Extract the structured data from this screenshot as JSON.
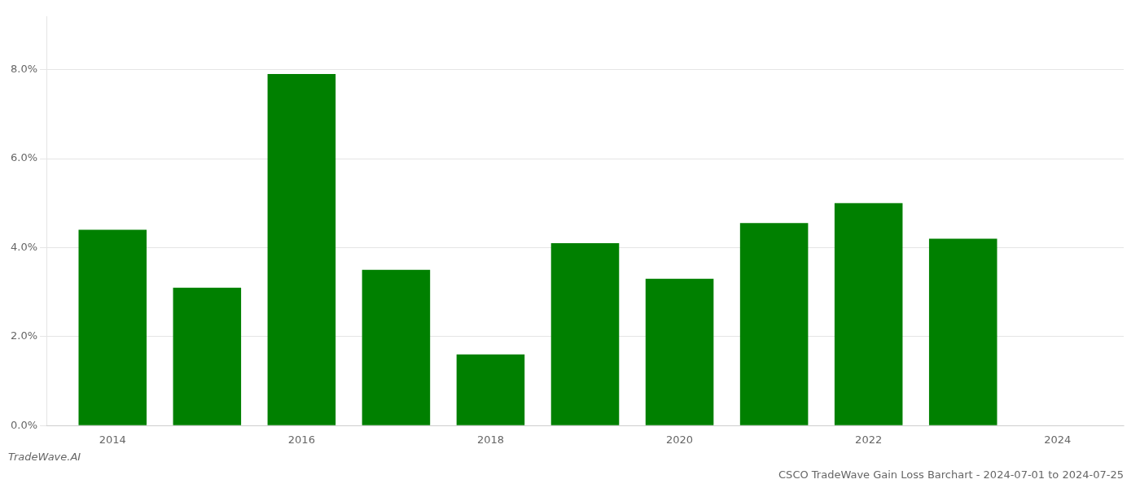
{
  "chart_data": {
    "type": "bar",
    "title": "CSCO TradeWave Gain Loss Barchart - 2024-07-01 to 2024-07-25",
    "annotations": [
      "TradeWave.AI"
    ],
    "x": [
      2014,
      2015,
      2016,
      2017,
      2018,
      2019,
      2020,
      2021,
      2022,
      2023
    ],
    "values": [
      0.044,
      0.031,
      0.079,
      0.035,
      0.016,
      0.041,
      0.033,
      0.0455,
      0.05,
      0.042
    ],
    "color": "#008000",
    "xlim": [
      2013.3,
      2024.7
    ],
    "xticks": [
      2014,
      2016,
      2018,
      2020,
      2022,
      2024
    ],
    "ylim": [
      0,
      0.092
    ],
    "yticks": [
      {
        "value": 0,
        "label": "0.0%"
      },
      {
        "value": 0.02,
        "label": "2.0%"
      },
      {
        "value": 0.04,
        "label": "4.0%"
      },
      {
        "value": 0.06,
        "label": "6.0%"
      },
      {
        "value": 0.08,
        "label": "8.0%"
      }
    ],
    "grid": "y"
  }
}
